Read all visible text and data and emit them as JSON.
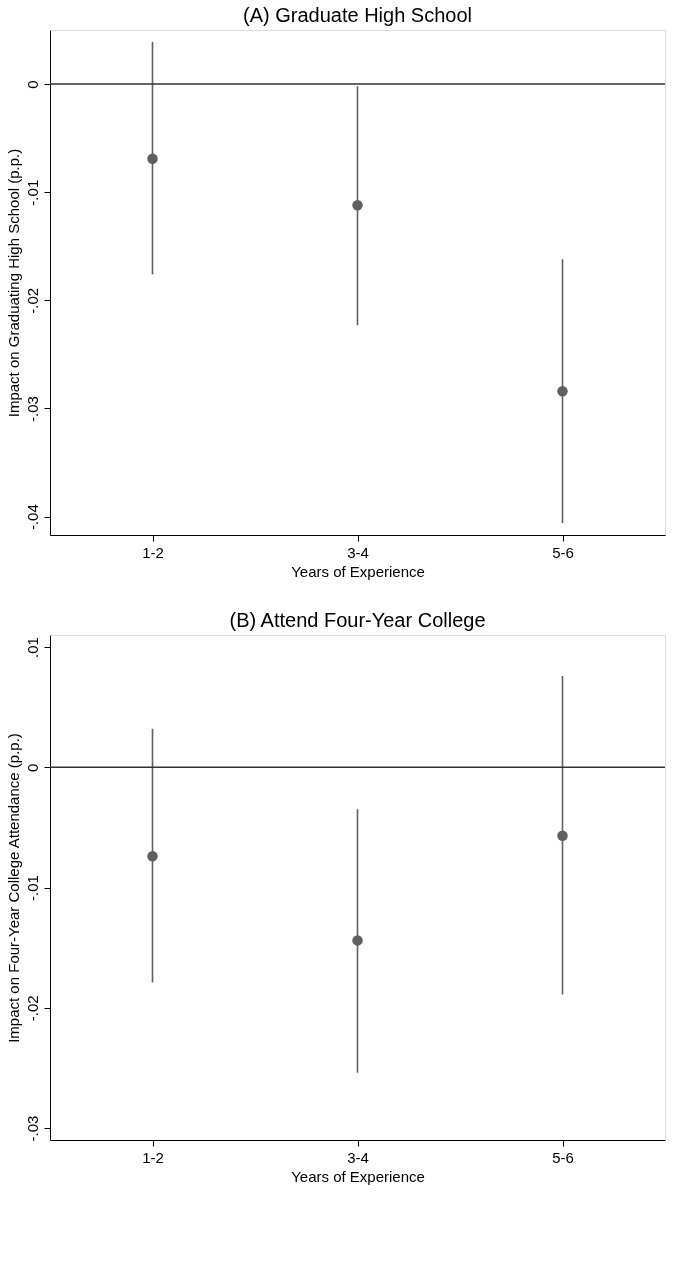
{
  "chart_data": [
    {
      "type": "scatter",
      "title": "(A) Graduate High School",
      "xlabel": "Years of Experience",
      "ylabel": "Impact on Graduating High School (p.p.)",
      "categories": [
        "1-2",
        "3-4",
        "5-6"
      ],
      "series": [
        {
          "color": "#606060",
          "values": [
            -0.0069,
            -0.0112,
            -0.0284
          ],
          "errors": [
            [
              -0.0176,
              0.0039
            ],
            [
              -0.0223,
              -0.0002
            ],
            [
              -0.0406,
              -0.0162
            ]
          ]
        }
      ],
      "ylim": [
        -0.0417,
        0.005
      ],
      "yticks": [
        {
          "value": -0.04,
          "label": "-.04"
        },
        {
          "value": -0.03,
          "label": "-.03"
        },
        {
          "value": -0.02,
          "label": "-.02"
        },
        {
          "value": -0.01,
          "label": "-.01"
        },
        0
      ],
      "ref_lines": [
        {
          "axis": "y",
          "value": 0,
          "color": "#333333"
        }
      ],
      "marker": "circle",
      "grid": false
    },
    {
      "type": "scatter",
      "title": "(B) Attend Four-Year College",
      "xlabel": "Years of Experience",
      "ylabel": "Impact on Four-Year College Attendance (p.p.)",
      "categories": [
        "1-2",
        "3-4",
        "5-6"
      ],
      "series": [
        {
          "color": "#606060",
          "values": [
            -0.0074,
            -0.0144,
            -0.0057
          ],
          "errors": [
            [
              -0.0179,
              0.0032
            ],
            [
              -0.0254,
              -0.0035
            ],
            [
              -0.0189,
              0.0076
            ]
          ]
        }
      ],
      "ylim": [
        -0.031,
        0.011
      ],
      "yticks": [
        {
          "value": -0.03,
          "label": "-.03"
        },
        {
          "value": -0.02,
          "label": "-.02"
        },
        {
          "value": -0.01,
          "label": "-.01"
        },
        0,
        {
          "value": 0.01,
          "label": ".01"
        }
      ],
      "ref_lines": [
        {
          "axis": "y",
          "value": 0,
          "color": "#333333"
        }
      ],
      "marker": "circle",
      "grid": false
    }
  ]
}
